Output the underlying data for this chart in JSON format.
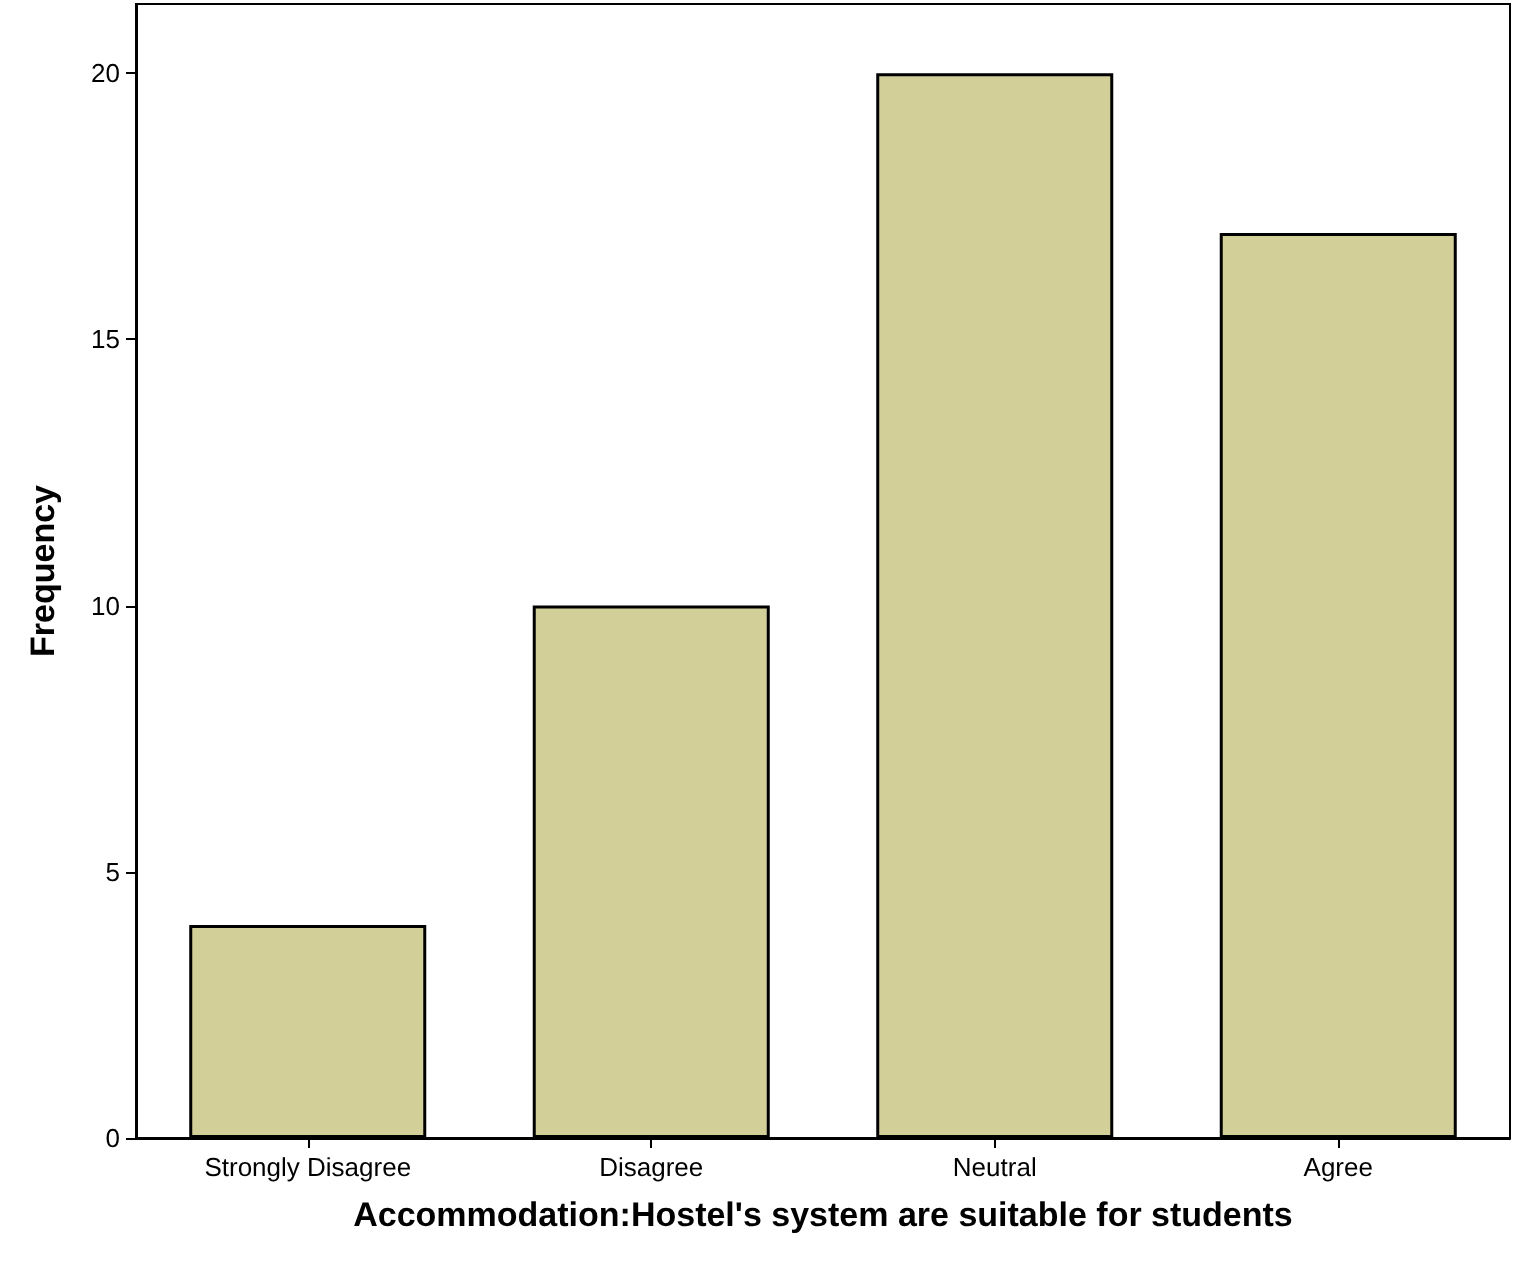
{
  "chart_data": {
    "type": "bar",
    "xlabel": "Accommodation:Hostel's system are suitable for students",
    "ylabel": "Frequency",
    "categories": [
      "Strongly Disagree",
      "Disagree",
      "Neutral",
      "Agree"
    ],
    "values": [
      4,
      10,
      20,
      17
    ],
    "color": "#d3cf99",
    "ylim": [
      0,
      21.3
    ],
    "yticks": [
      0,
      5,
      10,
      15,
      20
    ],
    "grid": false
  }
}
